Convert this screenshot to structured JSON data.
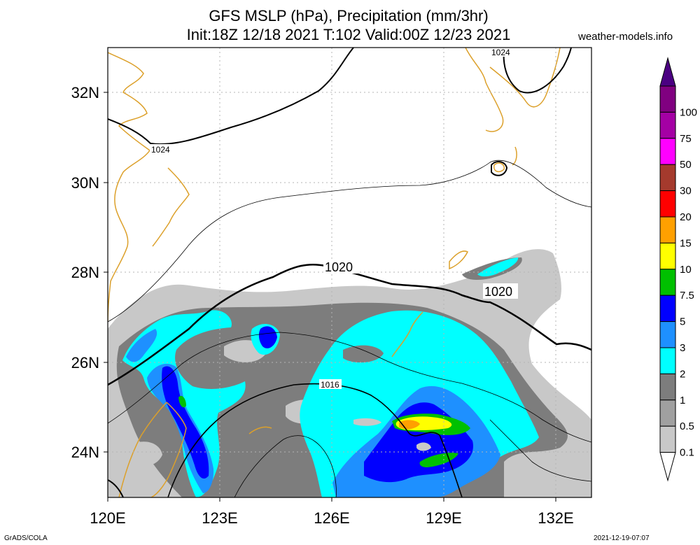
{
  "header": {
    "title_line1": "GFS MSLP (hPa), Precipitation (mm/3hr)",
    "title_line2": "Init:18Z 12/18 2021 T:102 Valid:00Z 12/23 2021",
    "site": "weather-models.info"
  },
  "map": {
    "lon_labels": [
      "120E",
      "123E",
      "126E",
      "129E",
      "132E"
    ],
    "lat_labels": [
      "32N",
      "30N",
      "28N",
      "26N",
      "24N"
    ],
    "isobar_labels": [
      "1024",
      "1024",
      "1020",
      "1020",
      "1016"
    ]
  },
  "colorbar": {
    "labels": [
      "100",
      "75",
      "50",
      "30",
      "20",
      "15",
      "10",
      "7.5",
      "5",
      "3",
      "2",
      "1",
      "0.5",
      "0.1"
    ],
    "colors": [
      "#800080",
      "#a400a4",
      "#ff00ff",
      "#a53a2d",
      "#ff0000",
      "#ffa000",
      "#ffff00",
      "#00c000",
      "#0000ff",
      "#1e90ff",
      "#00ffff",
      "#7d7d7d",
      "#a0a0a0",
      "#c8c8c8"
    ],
    "top_color": "#4b0082"
  },
  "footer": {
    "left": "GrADS/COLA",
    "right": "2021-12-19-07:07"
  }
}
